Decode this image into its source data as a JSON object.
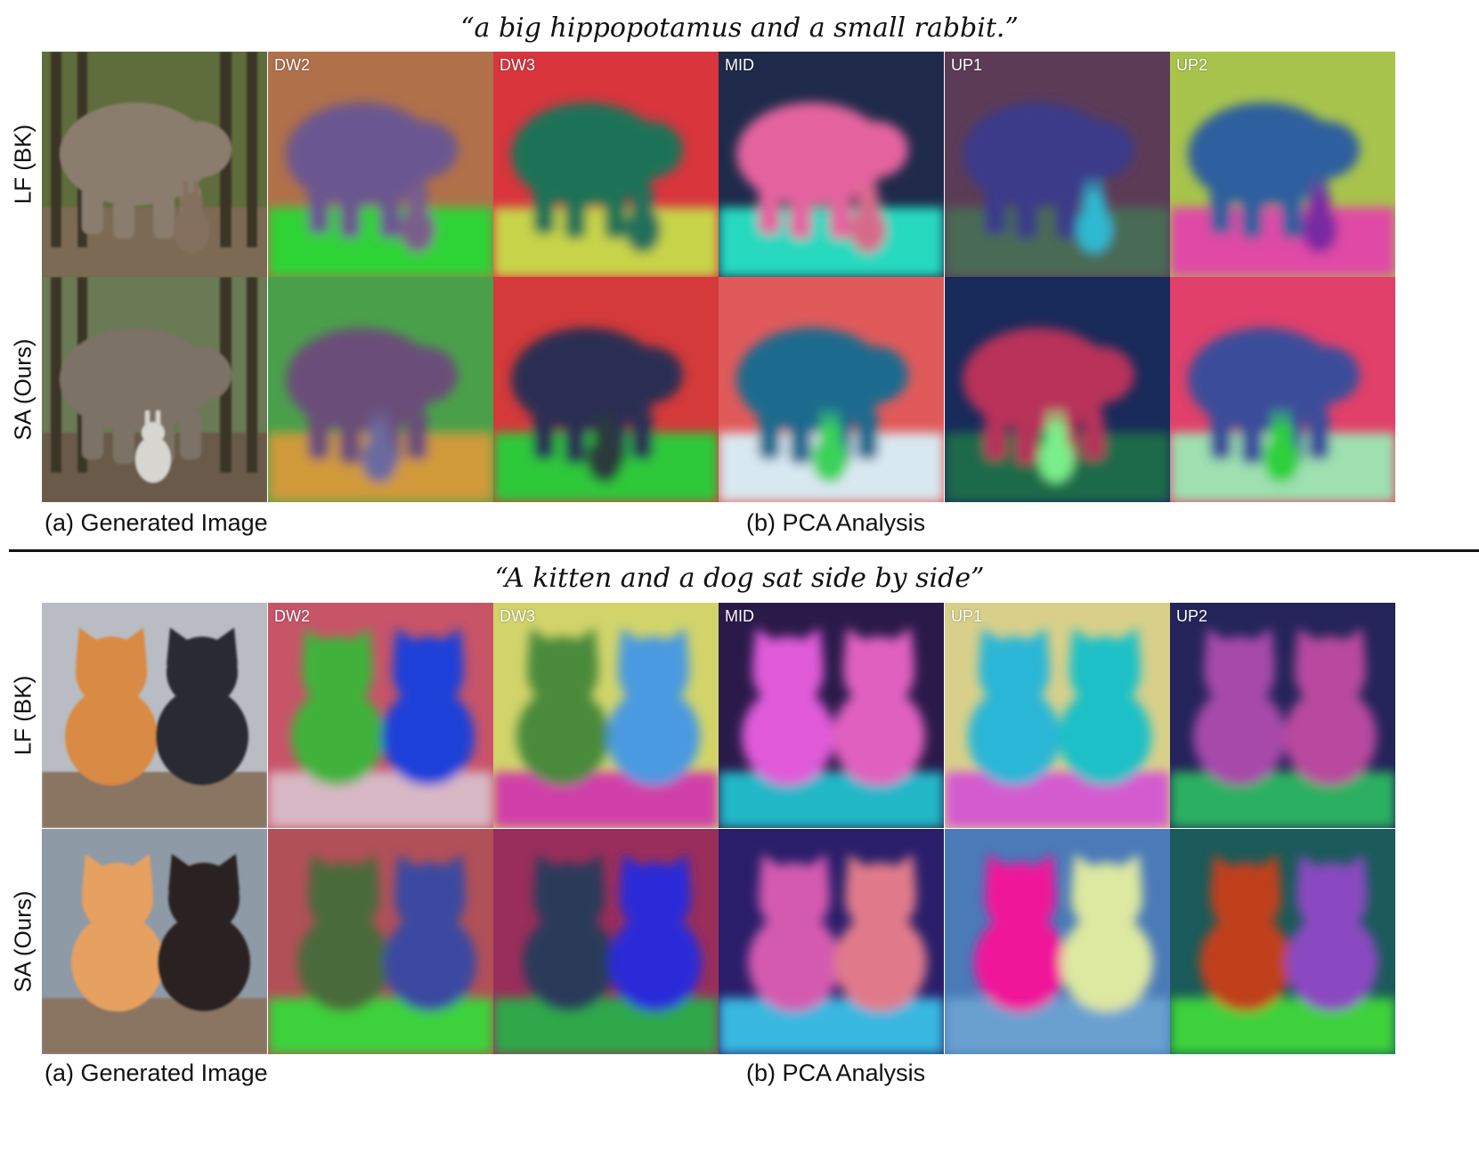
{
  "figure": {
    "panels": [
      {
        "prompt": "“a big hippopotamus and a small rabbit.”",
        "subject": "hippo",
        "rows": [
          {
            "label": "LF (BK)",
            "tiles": [
              {
                "bg": "#5f6d3c",
                "body": "#8a7d6d",
                "small": "#85705e",
                "ground": "#7d6b55",
                "kind": "photo"
              },
              {
                "tag": "DW2",
                "bg": "#b0704a",
                "body": "#6a5690",
                "small": "#7a5e8a",
                "ground": "#2fd336"
              },
              {
                "tag": "DW3",
                "bg": "#d8353d",
                "body": "#1f7256",
                "small": "#22705a",
                "ground": "#c7d44a"
              },
              {
                "tag": "MID",
                "bg": "#1f2a4a",
                "body": "#e4649e",
                "small": "#d66a8a",
                "ground": "#28d9bf"
              },
              {
                "tag": "UP1",
                "bg": "#5c3b56",
                "body": "#3a3b8a",
                "small": "#2db9d2",
                "ground": "#4a6a55"
              },
              {
                "tag": "UP2",
                "bg": "#a8c44c",
                "body": "#2f5f9e",
                "small": "#7a2aa0",
                "ground": "#e04aa6"
              }
            ]
          },
          {
            "label": "SA (Ours)",
            "tiles": [
              {
                "bg": "#6a7a55",
                "body": "#7c7265",
                "small": "#d8d6d0",
                "ground": "#6b5a48",
                "kind": "photo"
              },
              {
                "tag": "",
                "bg": "#4aa04a",
                "body": "#6a4e78",
                "small": "#6a6a9e",
                "ground": "#d09a3a"
              },
              {
                "tag": "",
                "bg": "#d43a3a",
                "body": "#2a2e52",
                "small": "#2a3a3a",
                "ground": "#2ec83a"
              },
              {
                "tag": "",
                "bg": "#e05a5a",
                "body": "#1e6a8e",
                "small": "#3ad25a",
                "ground": "#d8e8f0"
              },
              {
                "tag": "",
                "bg": "#182a5a",
                "body": "#b8325a",
                "small": "#7aee8a",
                "ground": "#1a6a4a"
              },
              {
                "tag": "",
                "bg": "#e0406a",
                "body": "#3a4e9a",
                "small": "#2ed03a",
                "ground": "#9ee0b0"
              }
            ]
          }
        ],
        "left_label": "(a) Generated Image",
        "right_label": "(b) PCA Analysis"
      },
      {
        "prompt": "“A kitten and a dog sat side by side”",
        "subject": "pets",
        "rows": [
          {
            "label": "LF (BK)",
            "tiles": [
              {
                "bg": "#b9bcc2",
                "a": "#d98a45",
                "b": "#2a2a30",
                "ground": "#8a7462",
                "kind": "photo"
              },
              {
                "tag": "DW2",
                "bg": "#c85468",
                "a": "#3fb23a",
                "b": "#1d3fd8",
                "ground": "#d8b8c4"
              },
              {
                "tag": "DW3",
                "bg": "#d2d46a",
                "a": "#4a8a3a",
                "b": "#4a9ae0",
                "ground": "#d040a8"
              },
              {
                "tag": "MID",
                "bg": "#2a1a4a",
                "a": "#e05ad8",
                "b": "#e060c0",
                "ground": "#24b8c8"
              },
              {
                "tag": "UP1",
                "bg": "#d8d08a",
                "a": "#2ab6d6",
                "b": "#1ec0c6",
                "ground": "#d45ad0"
              },
              {
                "tag": "UP2",
                "bg": "#24245a",
                "a": "#a64aaa",
                "b": "#b84a9e",
                "ground": "#2ab060"
              }
            ]
          },
          {
            "label": "SA (Ours)",
            "tiles": [
              {
                "bg": "#8e9aa6",
                "a": "#e6a060",
                "b": "#2a2420",
                "ground": "#8a7462",
                "kind": "photo"
              },
              {
                "tag": "",
                "bg": "#b25058",
                "a": "#4a6a3a",
                "b": "#3a4aa0",
                "ground": "#3ed23a"
              },
              {
                "tag": "",
                "bg": "#9a2e5a",
                "a": "#2a3a5a",
                "b": "#2a2ad8",
                "ground": "#2ea84a"
              },
              {
                "tag": "",
                "bg": "#2a1e6a",
                "a": "#d45ab0",
                "b": "#e07a8a",
                "ground": "#38b8e0"
              },
              {
                "tag": "",
                "bg": "#4a7ab8",
                "a": "#f0189a",
                "b": "#dde8a0",
                "ground": "#6aa0d0"
              },
              {
                "tag": "",
                "bg": "#1a5a5a",
                "a": "#c0401a",
                "b": "#8a4ac0",
                "ground": "#3ed23a"
              }
            ]
          }
        ],
        "left_label": "(a) Generated Image",
        "right_label": "(b) PCA Analysis"
      }
    ]
  }
}
